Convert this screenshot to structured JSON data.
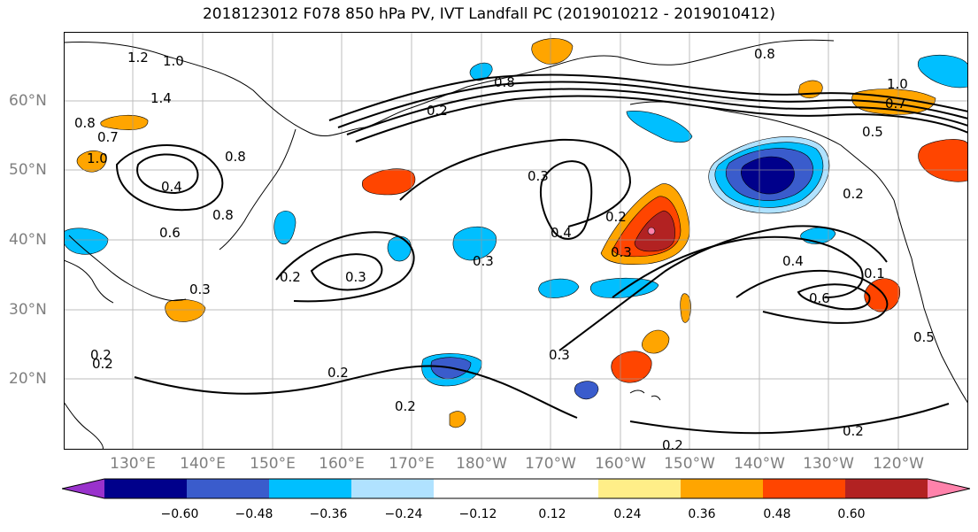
{
  "title": "2018123012 F078 850 hPa PV, IVT Landfall PC (2019010212 - 2019010412)",
  "lat_labels": [
    "60°N",
    "50°N",
    "40°N",
    "30°N",
    "20°N"
  ],
  "lon_labels": [
    "130°E",
    "140°E",
    "150°E",
    "160°E",
    "170°E",
    "180°W",
    "170°W",
    "160°W",
    "150°W",
    "140°W",
    "130°W",
    "120°W"
  ],
  "colorbar": {
    "colors": [
      "#9932cc",
      "#00008b",
      "#3a5ccc",
      "#00bfff",
      "#b0e2ff",
      "#ffffff",
      "#ffffff",
      "#ffee88",
      "#ffa500",
      "#ff4500",
      "#b22222",
      "#ff82ab"
    ],
    "ticks": [
      "−0.60",
      "−0.48",
      "−0.36",
      "−0.24",
      "−0.12",
      "0.12",
      "0.24",
      "0.36",
      "0.48",
      "0.60"
    ]
  },
  "contour_labels": [
    "1.2",
    "1.0",
    "1.4",
    "0.8",
    "0.7",
    "0.8",
    "1.0",
    "0.4",
    "0.8",
    "0.6",
    "0.2",
    "0.3",
    "0.2",
    "0.3",
    "0.2",
    "0.8",
    "0.2",
    "0.3",
    "0.4",
    "0.2",
    "0.3",
    "0.3",
    "0.2",
    "0.3",
    "0.2",
    "0.2",
    "0.8",
    "1.0",
    "0.7",
    "0.5",
    "0.2",
    "0.4",
    "0.6",
    "0.1",
    "0.5",
    "0.2"
  ]
}
